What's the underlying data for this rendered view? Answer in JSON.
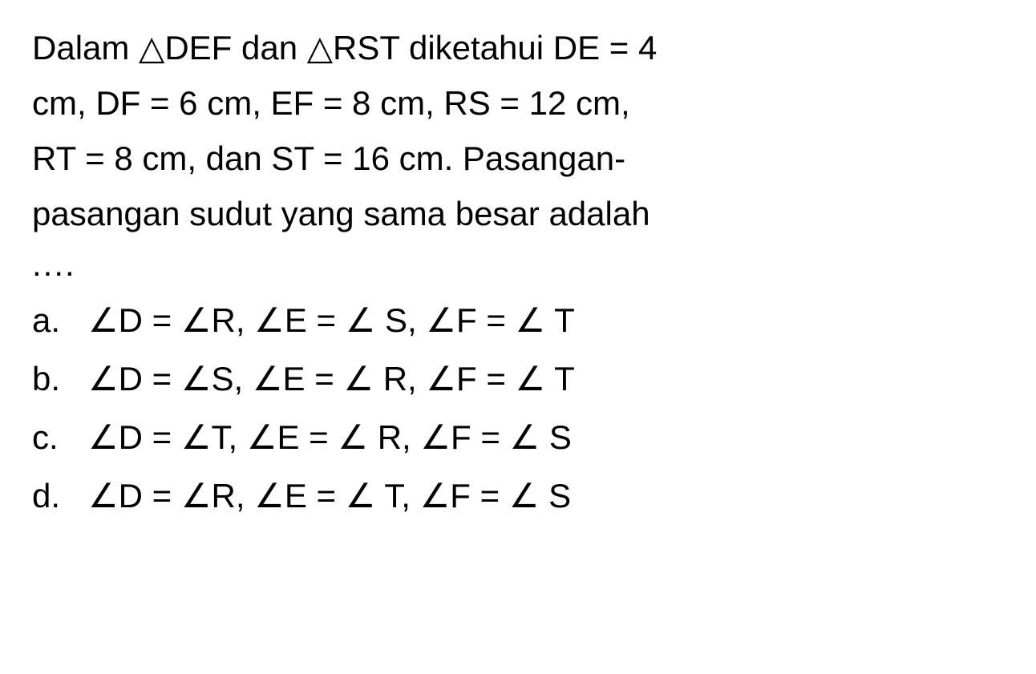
{
  "question": {
    "text_line1": "Dalam △DEF dan △RST diketahui DE = 4",
    "text_line2": "cm, DF = 6 cm, EF = 8 cm, RS = 12 cm,",
    "text_line3": "RT = 8 cm, dan ST = 16 cm. Pasangan-",
    "text_line4": "pasangan sudut yang sama besar adalah",
    "ellipsis": "...."
  },
  "options": [
    {
      "letter": "a.",
      "content": "∠D = ∠R,  ∠E = ∠ S, ∠F = ∠ T"
    },
    {
      "letter": "b.",
      "content": "∠D = ∠S,  ∠E = ∠ R, ∠F = ∠ T"
    },
    {
      "letter": "c.",
      "content": "∠D = ∠T,  ∠E = ∠ R, ∠F = ∠ S"
    },
    {
      "letter": "d.",
      "content": "∠D = ∠R,  ∠E = ∠ T, ∠F = ∠ S"
    }
  ],
  "styling": {
    "background_color": "#ffffff",
    "text_color": "#000000",
    "font_size_body": 42,
    "font_family": "Arial",
    "line_height": 1.45,
    "option_letter_width": 70
  }
}
